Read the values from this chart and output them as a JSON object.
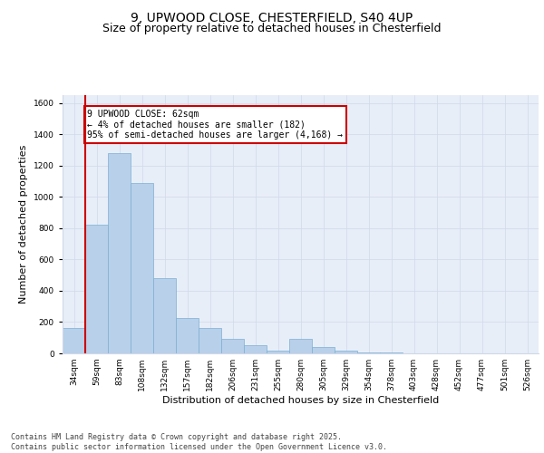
{
  "title_line1": "9, UPWOOD CLOSE, CHESTERFIELD, S40 4UP",
  "title_line2": "Size of property relative to detached houses in Chesterfield",
  "xlabel": "Distribution of detached houses by size in Chesterfield",
  "ylabel": "Number of detached properties",
  "categories": [
    "34sqm",
    "59sqm",
    "83sqm",
    "108sqm",
    "132sqm",
    "157sqm",
    "182sqm",
    "206sqm",
    "231sqm",
    "255sqm",
    "280sqm",
    "305sqm",
    "329sqm",
    "354sqm",
    "378sqm",
    "403sqm",
    "428sqm",
    "452sqm",
    "477sqm",
    "501sqm",
    "526sqm"
  ],
  "values": [
    160,
    820,
    1280,
    1090,
    480,
    225,
    160,
    90,
    50,
    20,
    90,
    40,
    15,
    8,
    3,
    2,
    1,
    1,
    0,
    0,
    0
  ],
  "bar_color": "#b8d0ea",
  "bar_edgecolor": "#7bafd4",
  "vline_x": 1,
  "vline_color": "#cc0000",
  "annotation_text": "9 UPWOOD CLOSE: 62sqm\n← 4% of detached houses are smaller (182)\n95% of semi-detached houses are larger (4,168) →",
  "annotation_box_edgecolor": "#cc0000",
  "annotation_fontsize": 7,
  "ylim": [
    0,
    1650
  ],
  "yticks": [
    0,
    200,
    400,
    600,
    800,
    1000,
    1200,
    1400,
    1600
  ],
  "grid_color": "#d0d8e8",
  "background_color": "#e8eef8",
  "footer_text": "Contains HM Land Registry data © Crown copyright and database right 2025.\nContains public sector information licensed under the Open Government Licence v3.0.",
  "title_fontsize": 10,
  "subtitle_fontsize": 9,
  "axis_label_fontsize": 8,
  "tick_fontsize": 6.5,
  "ylabel_fontsize": 8
}
